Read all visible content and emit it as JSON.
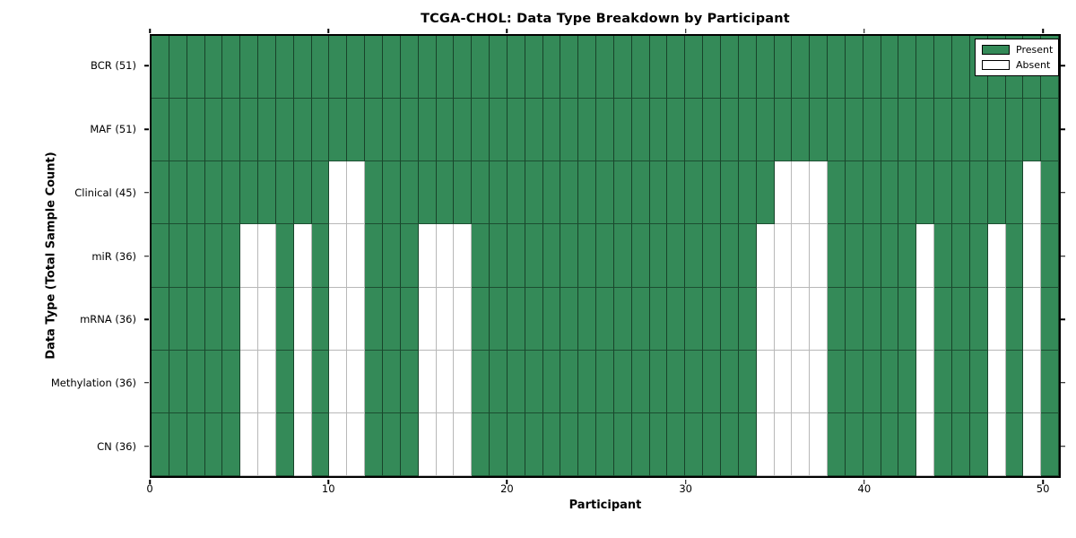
{
  "chart_data": {
    "type": "heatmap",
    "title": "TCGA-CHOL: Data Type Breakdown by Participant",
    "xlabel": "Participant",
    "ylabel": "Data Type (Total Sample Count)",
    "n_participants": 51,
    "x_range": [
      0,
      51
    ],
    "x_ticks": [
      0,
      10,
      20,
      30,
      40,
      50
    ],
    "grid": true,
    "colors": {
      "present": "#348a58",
      "absent": "#ffffff",
      "cell_edge": "#0a1e12",
      "absent_edge": "#b8b8b8"
    },
    "legend": {
      "position": "upper right",
      "entries": [
        {
          "label": "Present",
          "color": "#348a58"
        },
        {
          "label": "Absent",
          "color": "#ffffff"
        }
      ]
    },
    "rows": [
      {
        "label": "BCR (51)",
        "data_type": "BCR",
        "total_samples": 51,
        "absent_participants": []
      },
      {
        "label": "MAF (51)",
        "data_type": "MAF",
        "total_samples": 51,
        "absent_participants": []
      },
      {
        "label": "Clinical (45)",
        "data_type": "Clinical",
        "total_samples": 45,
        "absent_participants": [
          10,
          11,
          35,
          36,
          37,
          49
        ]
      },
      {
        "label": "miR (36)",
        "data_type": "miR",
        "total_samples": 36,
        "absent_participants": [
          5,
          6,
          8,
          10,
          11,
          15,
          16,
          17,
          34,
          35,
          36,
          37,
          43,
          47,
          49
        ]
      },
      {
        "label": "mRNA (36)",
        "data_type": "mRNA",
        "total_samples": 36,
        "absent_participants": [
          5,
          6,
          8,
          10,
          11,
          15,
          16,
          17,
          34,
          35,
          36,
          37,
          43,
          47,
          49
        ]
      },
      {
        "label": "Methylation (36)",
        "data_type": "Methylation",
        "total_samples": 36,
        "absent_participants": [
          5,
          6,
          8,
          10,
          11,
          15,
          16,
          17,
          34,
          35,
          36,
          37,
          43,
          47,
          49
        ]
      },
      {
        "label": "CN (36)",
        "data_type": "CN",
        "total_samples": 36,
        "absent_participants": [
          5,
          6,
          8,
          10,
          11,
          15,
          16,
          17,
          34,
          35,
          36,
          37,
          43,
          47,
          49
        ]
      }
    ]
  }
}
